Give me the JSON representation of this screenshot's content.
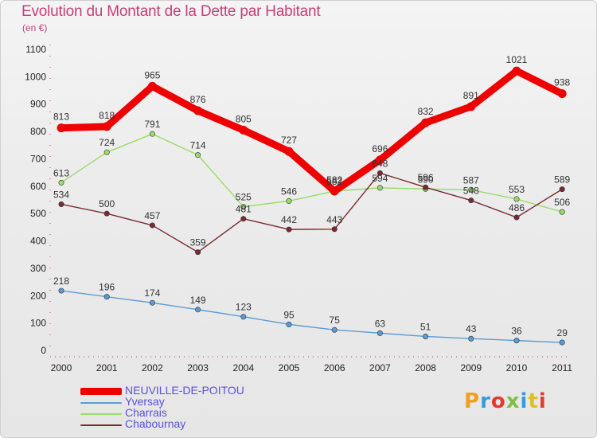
{
  "title": "Evolution du Montant de la Dette par Habitant",
  "subtitle": "(en €)",
  "logo": {
    "text": "Proxiti",
    "colors": [
      "#f0a020",
      "#3a9ad9",
      "#e63a2e",
      "#7cc142",
      "#3a9ad9",
      "#e0c020",
      "#e63a2e"
    ]
  },
  "chart_data": {
    "type": "line",
    "x": [
      "2000",
      "2001",
      "2002",
      "2003",
      "2004",
      "2005",
      "2006",
      "2007",
      "2008",
      "2009",
      "2010",
      "2011"
    ],
    "ylim": [
      0,
      1100
    ],
    "yticks": [
      0,
      100,
      200,
      300,
      400,
      500,
      600,
      700,
      800,
      900,
      1000,
      1100
    ],
    "grid": false,
    "legend_position": "bottom-left",
    "series": [
      {
        "name": "NEUVILLE-DE-POITOU",
        "color": "#ee0000",
        "bold": true,
        "values": [
          813,
          818,
          965,
          876,
          805,
          727,
          582,
          696,
          832,
          891,
          1021,
          938
        ],
        "labels": [
          "813",
          "818",
          "965",
          "876",
          "805",
          "727",
          "582",
          "696",
          "832",
          "891",
          "1021",
          "938"
        ]
      },
      {
        "name": "Yversay",
        "color": "#5b9bd5",
        "values": [
          218,
          196,
          174,
          149,
          123,
          95,
          75,
          63,
          51,
          43,
          36,
          29
        ],
        "labels": [
          "218",
          "196",
          "174",
          "149",
          "123",
          "95",
          "75",
          "63",
          "51",
          "43",
          "36",
          "29"
        ]
      },
      {
        "name": "Charrais",
        "color": "#99dd66",
        "values": [
          613,
          724,
          791,
          714,
          525,
          546,
          582,
          594,
          590,
          587,
          553,
          506
        ],
        "labels": [
          "613",
          "724",
          "791",
          "714",
          "525",
          "546",
          "582",
          "594",
          "590",
          "587",
          "553",
          "506"
        ]
      },
      {
        "name": "Chabournay",
        "color": "#7a2b32",
        "values": [
          534,
          500,
          457,
          359,
          481,
          442,
          443,
          648,
          596,
          548,
          486,
          589
        ],
        "labels": [
          "534",
          "500",
          "457",
          "359",
          "481",
          "442",
          "443",
          "648",
          "596",
          "548",
          "486",
          "589"
        ]
      }
    ]
  }
}
